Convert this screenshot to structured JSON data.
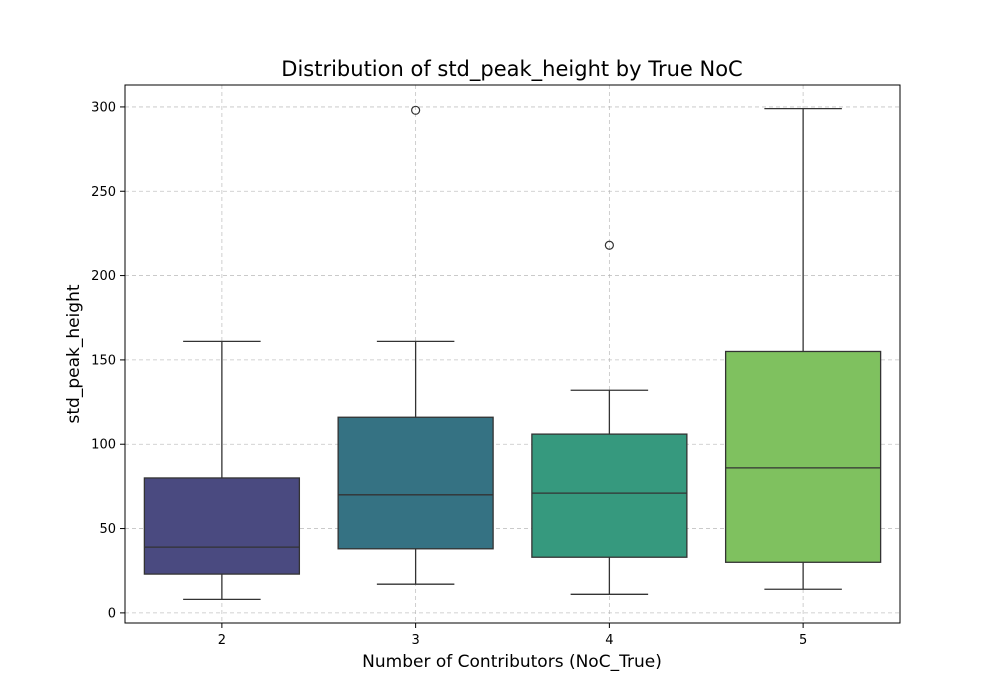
{
  "chart_data": {
    "type": "box",
    "title": "Distribution of std_peak_height by True NoC",
    "xlabel": "Number of Contributors (NoC_True)",
    "ylabel": "std_peak_height",
    "categories": [
      "2",
      "3",
      "4",
      "5"
    ],
    "ylim": [
      -6,
      313
    ],
    "yticks": [
      0,
      50,
      100,
      150,
      200,
      250,
      300
    ],
    "grid": true,
    "boxes": [
      {
        "category": "2",
        "whisker_low": 8,
        "q1": 23,
        "median": 39,
        "q3": 80,
        "whisker_high": 161,
        "outliers": [],
        "color": "#4a4a80"
      },
      {
        "category": "3",
        "whisker_low": 17,
        "q1": 38,
        "median": 70,
        "q3": 116,
        "whisker_high": 161,
        "outliers": [
          298
        ],
        "color": "#357283"
      },
      {
        "category": "4",
        "whisker_low": 11,
        "q1": 33,
        "median": 71,
        "q3": 106,
        "whisker_high": 132,
        "outliers": [
          218
        ],
        "color": "#36997e"
      },
      {
        "category": "5",
        "whisker_low": 14,
        "q1": 30,
        "median": 86,
        "q3": 155,
        "whisker_high": 299,
        "outliers": [],
        "color": "#7fc15f"
      }
    ]
  }
}
